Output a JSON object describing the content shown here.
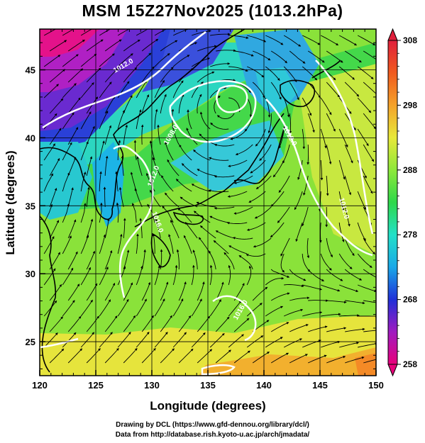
{
  "title": "MSM 15Z27Nov2025 (1013.2hPa)",
  "x_axis": {
    "title": "Longitude (degrees)",
    "range": [
      120,
      150
    ],
    "ticks": [
      120,
      125,
      130,
      135,
      140,
      145,
      150
    ],
    "tick_labels": [
      "120",
      "125",
      "130",
      "135",
      "140",
      "145",
      "150"
    ]
  },
  "y_axis": {
    "title": "Latitude  (degrees)",
    "range": [
      22.5,
      48
    ],
    "ticks": [
      25,
      30,
      35,
      40,
      45
    ],
    "tick_labels": [
      "25",
      "30",
      "35",
      "40",
      "45"
    ]
  },
  "colorbar": {
    "range": [
      258,
      308
    ],
    "tick_values": [
      258,
      268,
      278,
      288,
      298,
      308
    ],
    "tick_labels": [
      "258",
      "268",
      "278",
      "288",
      "298",
      "308"
    ],
    "colors": [
      "#e8007a",
      "#a01cc0",
      "#2030d8",
      "#1aa8e8",
      "#22e0c8",
      "#2ed84a",
      "#8ee83a",
      "#e8e83a",
      "#f4a22a",
      "#f05a1e",
      "#e0203c"
    ]
  },
  "contour_labels": [
    "1012.0",
    "1008.0",
    "1016.0",
    "1012.0",
    "1016.0",
    "1012.0",
    "1012.0"
  ],
  "credits": {
    "line1": "Drawing by DCL (https://www.gfd-dennou.org/library/dcl/)",
    "line2": "Data from http://database.rish.kyoto-u.ac.jp/arch/jmadata/"
  }
}
